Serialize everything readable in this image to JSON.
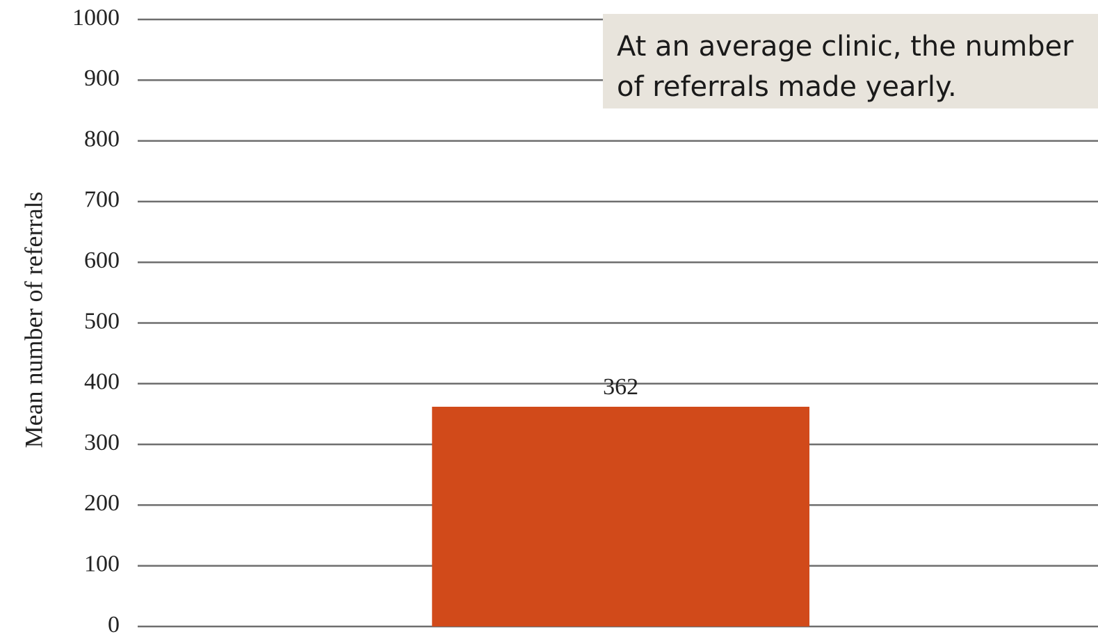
{
  "annotation": {
    "text": "At an average clinic, the number of referrals made yearly."
  },
  "colors": {
    "bar": "#d14a1a",
    "gridline": "#6e6e6e",
    "callout_bg": "#e8e4dc"
  },
  "chart_data": {
    "type": "bar",
    "title": "",
    "xlabel": "",
    "ylabel": "Mean number of referrals",
    "categories": [
      ""
    ],
    "values": [
      362
    ],
    "data_labels": [
      "362"
    ],
    "ylim": [
      0,
      1000
    ],
    "yticks": [
      0,
      100,
      200,
      300,
      400,
      500,
      600,
      700,
      800,
      900,
      1000
    ],
    "ytick_labels": [
      "0",
      "100",
      "200",
      "300",
      "400",
      "500",
      "600",
      "700",
      "800",
      "900",
      "1000"
    ],
    "grid": true,
    "legend": "none"
  }
}
